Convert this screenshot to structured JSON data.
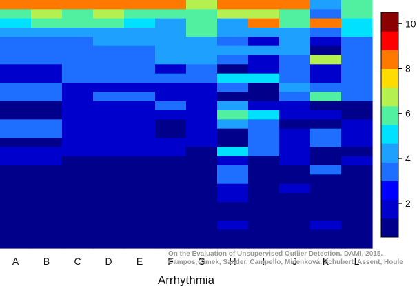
{
  "chart_data": {
    "type": "heatmap",
    "xlabel": "Arrhythmia",
    "x_categories": [
      "A",
      "B",
      "C",
      "D",
      "E",
      "F",
      "G",
      "H",
      "I",
      "J",
      "K",
      "L"
    ],
    "n_rows": 27,
    "colorbar": {
      "ticks": [
        2,
        4,
        6,
        8,
        10
      ],
      "range": [
        0.5,
        10.5
      ],
      "colors": [
        "#00008B",
        "#0000CD",
        "#0000FF",
        "#1E6FFF",
        "#1EA0FF",
        "#00E0FF",
        "#50F0A0",
        "#B4F050",
        "#FFDC00",
        "#FF7800",
        "#FF0000",
        "#8B0000"
      ]
    },
    "columns": [
      [
        8,
        6,
        5,
        4,
        3,
        3,
        3,
        2,
        2,
        3,
        3,
        1,
        1,
        3,
        3,
        1,
        2,
        2,
        1,
        1,
        1,
        1,
        1,
        1,
        1,
        1,
        1
      ],
      [
        8,
        7,
        6,
        4,
        3,
        3,
        3,
        2,
        2,
        3,
        3,
        1,
        1,
        3,
        3,
        1,
        2,
        2,
        1,
        1,
        1,
        1,
        1,
        1,
        1,
        1,
        1
      ],
      [
        8,
        6,
        6,
        4,
        3,
        3,
        3,
        3,
        3,
        2,
        2,
        2,
        2,
        2,
        2,
        2,
        2,
        1,
        1,
        1,
        1,
        1,
        1,
        1,
        1,
        1,
        1
      ],
      [
        8,
        7,
        6,
        4,
        4,
        3,
        3,
        3,
        3,
        2,
        3,
        2,
        2,
        2,
        2,
        2,
        2,
        1,
        1,
        1,
        1,
        1,
        1,
        1,
        1,
        1,
        1
      ],
      [
        8,
        6,
        5,
        4,
        4,
        3,
        3,
        3,
        3,
        2,
        3,
        2,
        2,
        2,
        2,
        2,
        2,
        1,
        1,
        1,
        1,
        1,
        1,
        1,
        1,
        1,
        1
      ],
      [
        8,
        6,
        4,
        4,
        4,
        4,
        4,
        2,
        3,
        2,
        2,
        3,
        2,
        1,
        1,
        2,
        2,
        1,
        1,
        1,
        1,
        1,
        1,
        1,
        1,
        1,
        1
      ],
      [
        7,
        6,
        6,
        6,
        4,
        4,
        4,
        3,
        3,
        2,
        2,
        2,
        2,
        2,
        2,
        2,
        1,
        1,
        1,
        1,
        1,
        1,
        1,
        1,
        1,
        1,
        1
      ],
      [
        8,
        7,
        4,
        4,
        3,
        4,
        3,
        1,
        5,
        3,
        1,
        4,
        6,
        4,
        1,
        1,
        5,
        2,
        3,
        3,
        2,
        2,
        1,
        1,
        2,
        1,
        1
      ],
      [
        8,
        7,
        8,
        4,
        2,
        4,
        2,
        2,
        5,
        1,
        1,
        2,
        5,
        3,
        3,
        3,
        3,
        1,
        1,
        1,
        1,
        1,
        1,
        1,
        1,
        1,
        1
      ],
      [
        8,
        6,
        6,
        4,
        4,
        4,
        3,
        3,
        3,
        4,
        3,
        2,
        2,
        1,
        2,
        2,
        2,
        2,
        1,
        1,
        2,
        1,
        1,
        1,
        1,
        1,
        1
      ],
      [
        4,
        3,
        8,
        3,
        2,
        1,
        7,
        2,
        2,
        3,
        6,
        1,
        2,
        1,
        3,
        3,
        1,
        1,
        3,
        1,
        1,
        1,
        1,
        1,
        2,
        1,
        1
      ],
      [
        6,
        6,
        5,
        5,
        3,
        3,
        3,
        3,
        3,
        3,
        3,
        1,
        1,
        2,
        2,
        2,
        1,
        2,
        1,
        1,
        1,
        1,
        1,
        1,
        1,
        1,
        1
      ]
    ],
    "watermark": {
      "line1": "On the Evaluation of Unsupervised Outlier Detection. DAMI, 2015.",
      "line2": "Campos, Zimek, Sander, Campello, Micenková, Schubert, Assent, Houle"
    }
  }
}
